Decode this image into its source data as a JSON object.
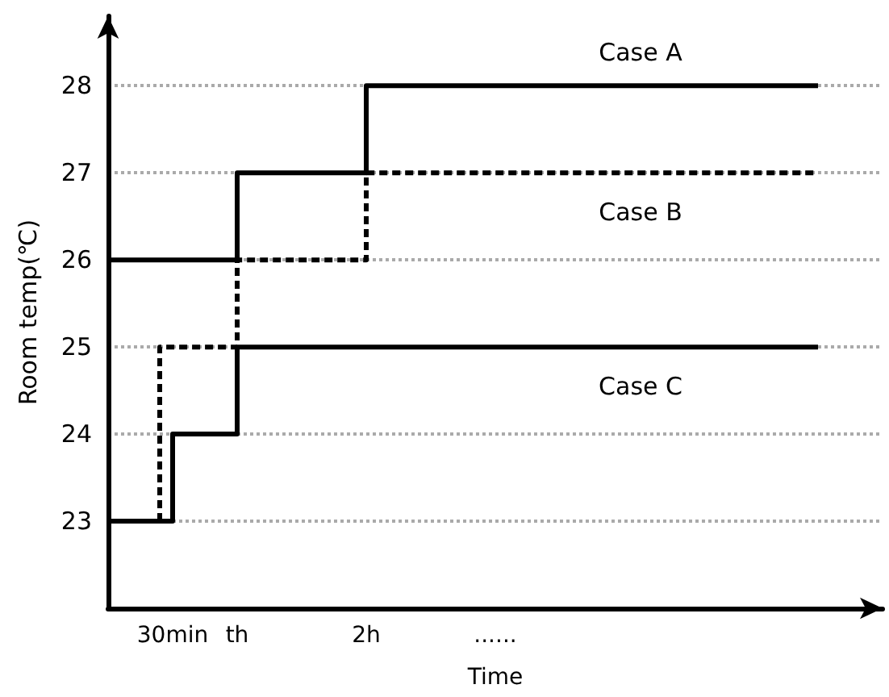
{
  "chart_data": {
    "type": "step",
    "xlabel": "Time",
    "ylabel": "Room temp(℃)",
    "categories": [
      null,
      null,
      null,
      null,
      null,
      "30min",
      null,
      null,
      null,
      null,
      "th",
      null,
      null,
      null,
      null,
      null,
      null,
      null,
      null,
      null,
      "2h",
      null,
      null,
      null,
      null,
      null,
      null,
      null,
      null,
      null,
      "......",
      null,
      null,
      null,
      null,
      null,
      null,
      null,
      null,
      null,
      null,
      null,
      null,
      null,
      null,
      null,
      null,
      null,
      null,
      null,
      null,
      null,
      null,
      null,
      null,
      null,
      null,
      null,
      null,
      null,
      null
    ],
    "ylim": [
      22,
      28.8
    ],
    "yticks": [
      23,
      24,
      25,
      26,
      27,
      28
    ],
    "grid": "y",
    "legend": false,
    "marker": "none",
    "series": [
      {
        "name": "Case A",
        "color": "#000000",
        "values": [
          26,
          26,
          26,
          26,
          26,
          26,
          26,
          26,
          26,
          26,
          27,
          27,
          27,
          27,
          27,
          27,
          27,
          27,
          27,
          27,
          28,
          28,
          28,
          28,
          28,
          28,
          28,
          28,
          28,
          28,
          28,
          28,
          28,
          28,
          28,
          28,
          28,
          28,
          28,
          28,
          28,
          28,
          28,
          28,
          28,
          28,
          28,
          28,
          28,
          28,
          28,
          28,
          28,
          28,
          28,
          28,
          null,
          null,
          null,
          null,
          null
        ]
      },
      {
        "name": "Case B",
        "color": "#000000",
        "line_style": "dashed",
        "values": [
          23,
          23,
          23,
          23,
          25,
          25,
          25,
          25,
          25,
          25,
          26,
          26,
          26,
          26,
          26,
          26,
          26,
          26,
          26,
          26,
          27,
          27,
          27,
          27,
          27,
          27,
          27,
          27,
          27,
          27,
          27,
          27,
          27,
          27,
          27,
          27,
          27,
          27,
          27,
          27,
          27,
          27,
          27,
          27,
          27,
          27,
          27,
          27,
          27,
          27,
          27,
          27,
          27,
          27,
          27,
          27,
          null,
          null,
          null,
          null,
          null
        ]
      },
      {
        "name": "Case C",
        "color": "#000000",
        "values": [
          23,
          23,
          23,
          23,
          23,
          24,
          24,
          24,
          24,
          24,
          25,
          25,
          25,
          25,
          25,
          25,
          25,
          25,
          25,
          25,
          25,
          25,
          25,
          25,
          25,
          25,
          25,
          25,
          25,
          25,
          25,
          25,
          25,
          25,
          25,
          25,
          25,
          25,
          25,
          25,
          25,
          25,
          25,
          25,
          25,
          25,
          25,
          25,
          25,
          25,
          25,
          25,
          25,
          25,
          25,
          25,
          null,
          null,
          null,
          null,
          null
        ]
      }
    ]
  }
}
